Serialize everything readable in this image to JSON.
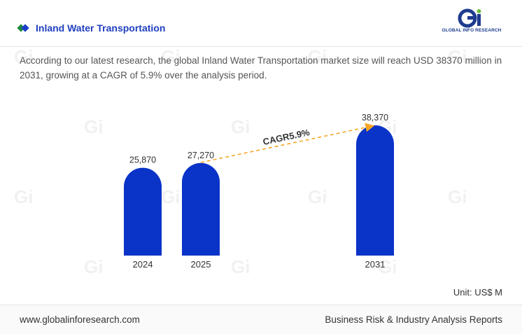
{
  "header": {
    "title": "Inland Water Transportation",
    "logo_text": "GLOBAL INFO RESEARCH"
  },
  "summary": "According to our latest research, the global Inland Water Transportation market size will reach USD 38370 million in 2031, growing at a CAGR of 5.9% over the analysis period.",
  "chart_data": {
    "type": "bar",
    "categories": [
      "2024",
      "2025",
      "2031"
    ],
    "values": [
      25870,
      27270,
      38370
    ],
    "value_labels": [
      "25,870",
      "27,270",
      "38,370"
    ],
    "annotation": "CAGR5.9%",
    "unit": "Unit: US$ M",
    "bar_color": "#0a33c8",
    "arrow_color": "#f5a623"
  },
  "footer": {
    "website": "www.globalinforesearch.com",
    "tagline": "Business Risk & Industry Analysis Reports"
  },
  "colors": {
    "title": "#1f3fbf",
    "accent_green": "#1f8a43"
  }
}
